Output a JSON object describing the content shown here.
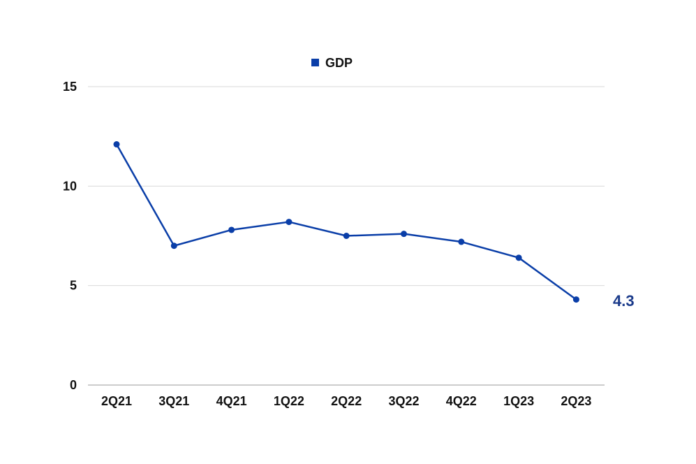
{
  "chart_data": {
    "type": "line",
    "categories": [
      "2Q21",
      "3Q21",
      "4Q21",
      "1Q22",
      "2Q22",
      "3Q22",
      "4Q22",
      "1Q23",
      "2Q23"
    ],
    "series": [
      {
        "name": "GDP",
        "values": [
          12.1,
          7.0,
          7.8,
          8.2,
          7.5,
          7.6,
          7.2,
          6.4,
          4.3
        ],
        "color": "#0a3ea8"
      }
    ],
    "yticks": [
      "0",
      "5",
      "10",
      "15"
    ],
    "ylim": [
      0,
      15
    ],
    "grid": true,
    "legend_position": "top-center",
    "end_label": "4.3",
    "end_label_color": "#1a3a8a",
    "title": "",
    "xlabel": "",
    "ylabel": ""
  }
}
